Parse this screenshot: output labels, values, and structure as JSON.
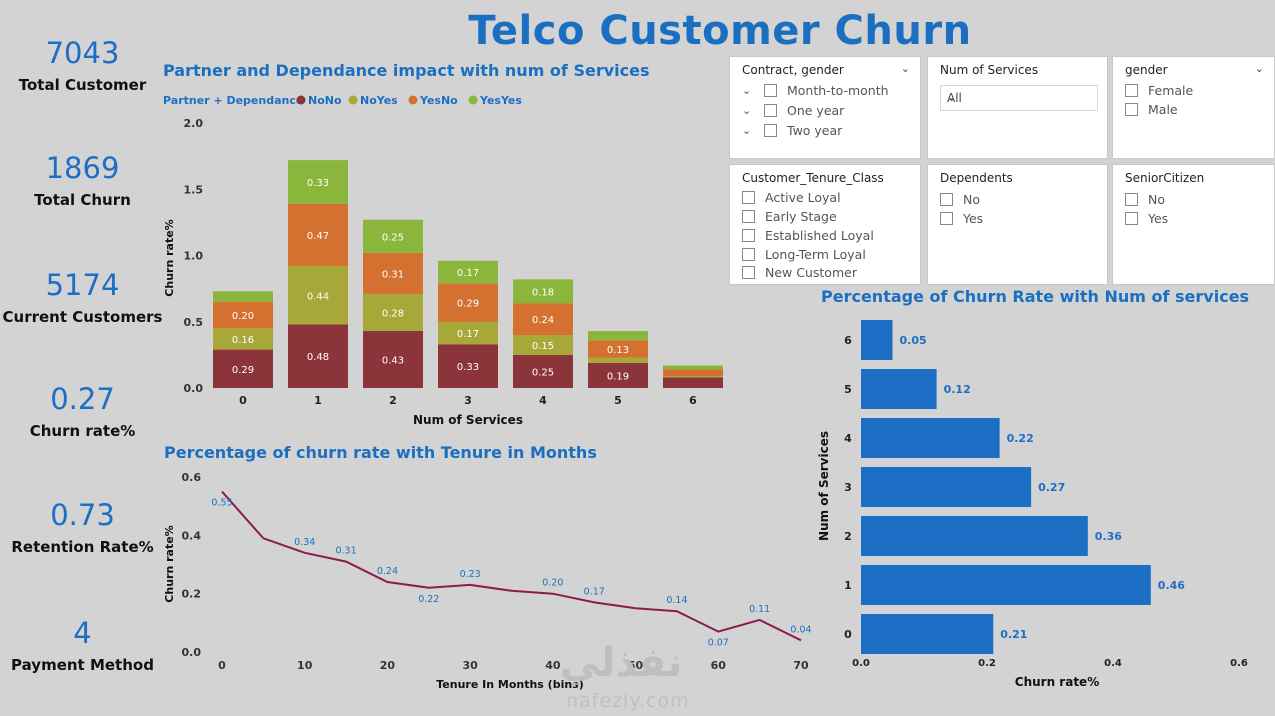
{
  "title": "Telco Customer Churn",
  "kpis": [
    {
      "value": "7043",
      "label": "Total Customer"
    },
    {
      "value": "1869",
      "label": "Total Churn"
    },
    {
      "value": "5174",
      "label": "Current Customers"
    },
    {
      "value": "0.27",
      "label": "Churn rate%"
    },
    {
      "value": "0.73",
      "label": "Retention Rate%"
    },
    {
      "value": "4",
      "label": "Payment Method"
    }
  ],
  "slicers": {
    "contract_gender": {
      "title": "Contract, gender",
      "options": [
        "Month-to-month",
        "One year",
        "Two year"
      ]
    },
    "num_services": {
      "title": "Num of Services",
      "selected": "All"
    },
    "gender": {
      "title": "gender",
      "options": [
        "Female",
        "Male"
      ]
    },
    "tenure_class": {
      "title": "Customer_Tenure_Class",
      "options": [
        "Active Loyal",
        "Early Stage",
        "Established Loyal",
        "Long-Term Loyal",
        "New Customer"
      ]
    },
    "dependents": {
      "title": "Dependents",
      "options": [
        "No",
        "Yes"
      ]
    },
    "senior": {
      "title": "SeniorCitizen",
      "options": [
        "No",
        "Yes"
      ]
    }
  },
  "watermark": {
    "arabic": "نفذلي",
    "latin": "nafezly.com"
  },
  "chart_data": [
    {
      "type": "bar",
      "stacked": true,
      "title": "Partner and Dependance impact with num of Services",
      "legend_title": "Partner + Dependance",
      "legend_placement": "top-left",
      "xlabel": "Num of Services",
      "ylabel": "Churn rate%",
      "ylim": [
        0,
        2
      ],
      "yticks": [
        "0.0",
        "0.5",
        "1.0",
        "1.5",
        "2.0"
      ],
      "categories": [
        "0",
        "1",
        "2",
        "3",
        "4",
        "5",
        "6"
      ],
      "series": [
        {
          "name": "NoNo",
          "color": "#8b3439",
          "values": [
            0.29,
            0.48,
            0.43,
            0.33,
            0.25,
            0.19,
            0.08
          ],
          "labels": [
            "0.29",
            "0.48",
            "0.43",
            "0.33",
            "0.25",
            "0.19",
            ""
          ]
        },
        {
          "name": "NoYes",
          "color": "#a8a838",
          "values": [
            0.16,
            0.44,
            0.28,
            0.17,
            0.15,
            0.04,
            0.01
          ],
          "labels": [
            "0.16",
            "0.44",
            "0.28",
            "0.17",
            "0.15",
            "",
            ""
          ]
        },
        {
          "name": "YesNo",
          "color": "#d47030",
          "values": [
            0.2,
            0.47,
            0.31,
            0.29,
            0.24,
            0.13,
            0.05
          ],
          "labels": [
            "0.20",
            "0.47",
            "0.31",
            "0.29",
            "0.24",
            "0.13",
            ""
          ]
        },
        {
          "name": "YesYes",
          "color": "#8ab63c",
          "values": [
            0.08,
            0.33,
            0.25,
            0.17,
            0.18,
            0.07,
            0.03
          ],
          "labels": [
            "",
            "0.33",
            "0.25",
            "0.17",
            "0.18",
            "",
            ""
          ]
        }
      ]
    },
    {
      "type": "line",
      "title": "Percentage of churn rate with Tenure in Months",
      "xlabel": "Tenure In Months (bins)",
      "ylabel": "Churn rate%",
      "xlim": [
        0,
        70
      ],
      "ylim": [
        0,
        0.6
      ],
      "xticks": [
        "0",
        "10",
        "20",
        "30",
        "40",
        "50",
        "60",
        "70"
      ],
      "yticks": [
        "0.0",
        "0.2",
        "0.4",
        "0.6"
      ],
      "line_color": "#8b1c4a",
      "label_color": "#1c6fc4",
      "x": [
        0,
        5,
        10,
        15,
        20,
        25,
        30,
        35,
        40,
        45,
        50,
        55,
        60,
        65,
        70
      ],
      "y": [
        0.55,
        0.39,
        0.34,
        0.31,
        0.24,
        0.22,
        0.23,
        0.21,
        0.2,
        0.17,
        0.15,
        0.14,
        0.07,
        0.11,
        0.04
      ],
      "labels": [
        "0.55",
        "",
        "0.34",
        "0.31",
        "0.24",
        "0.22",
        "0.23",
        "",
        "0.20",
        "0.17",
        "",
        "0.14",
        "0.07",
        "0.11",
        "0.04"
      ]
    },
    {
      "type": "bar",
      "orientation": "horizontal",
      "title": "Percentage of Churn Rate with Num of services",
      "xlabel": "Churn rate%",
      "ylabel": "Num of Services",
      "xlim": [
        0,
        0.6
      ],
      "xticks": [
        "0.0",
        "0.2",
        "0.4",
        "0.6"
      ],
      "bar_color": "#1c6fc4",
      "categories": [
        "6",
        "5",
        "4",
        "3",
        "2",
        "1",
        "0"
      ],
      "values": [
        0.05,
        0.12,
        0.22,
        0.27,
        0.36,
        0.46,
        0.21
      ],
      "labels": [
        "0.05",
        "0.12",
        "0.22",
        "0.27",
        "0.36",
        "0.46",
        "0.21"
      ]
    }
  ]
}
